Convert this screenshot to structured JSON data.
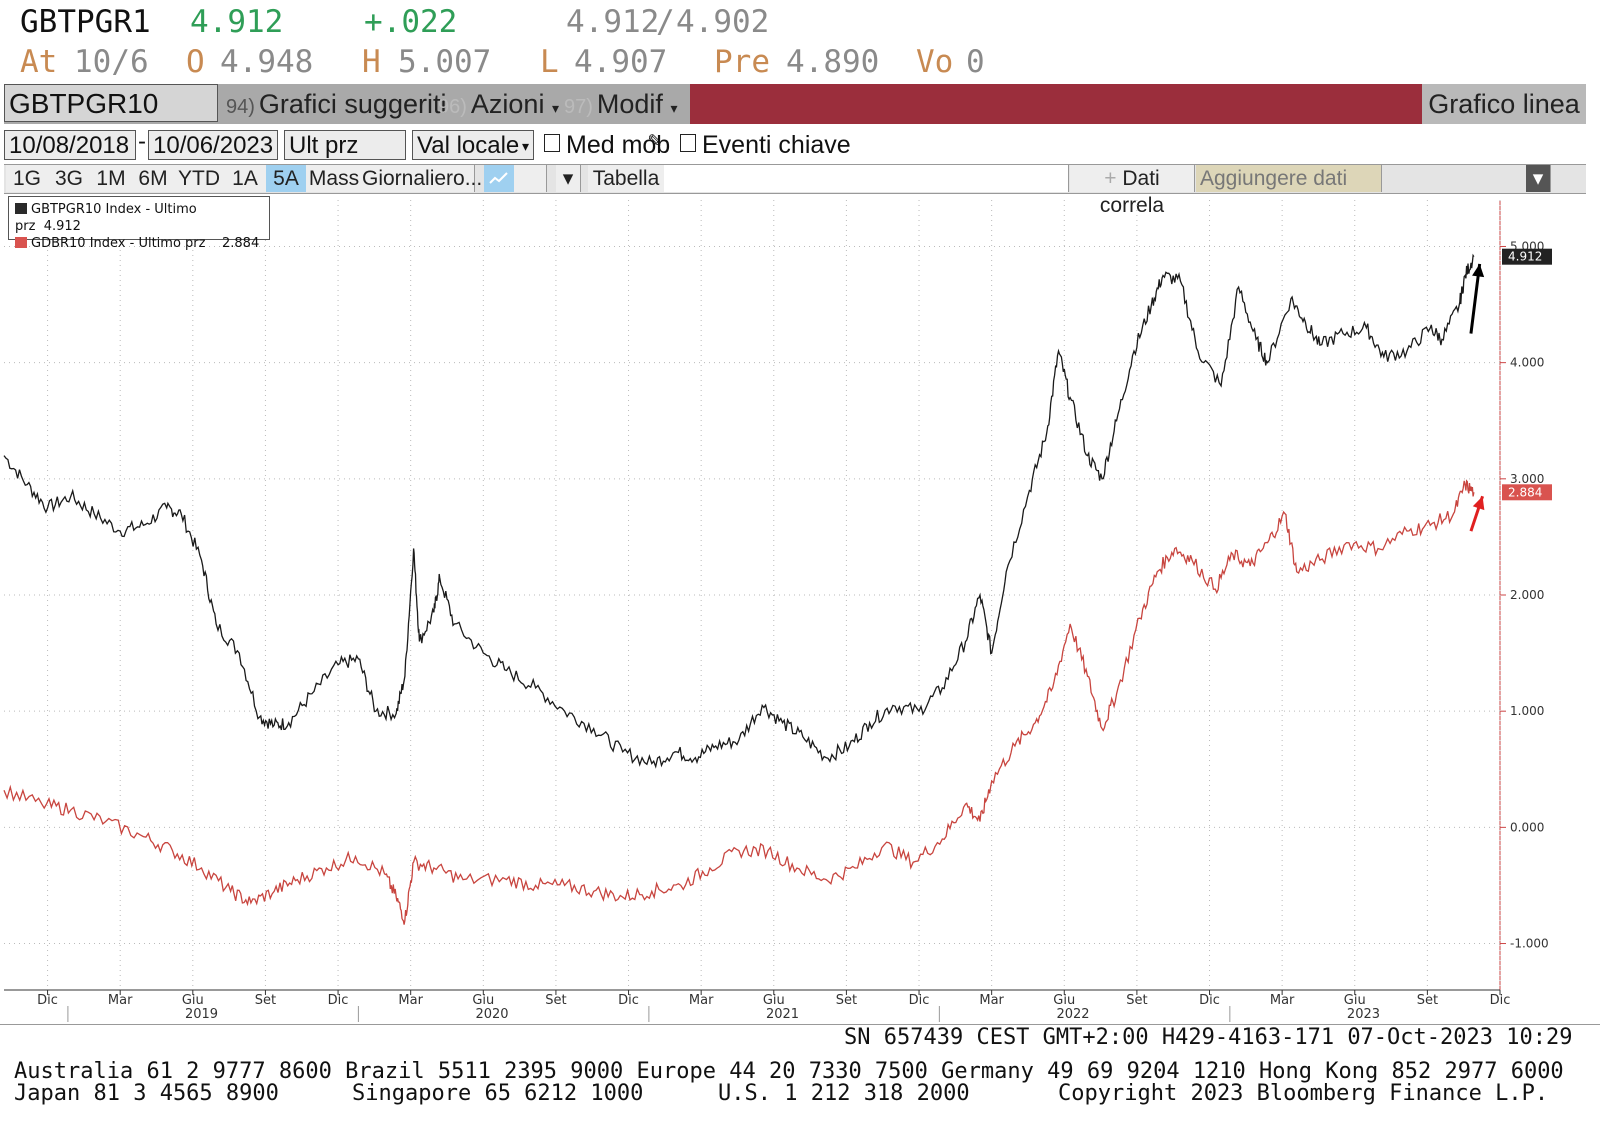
{
  "quote": {
    "ticker": "GBTPGR1",
    "last": "4.912",
    "change": "+.022",
    "bid": "4.912",
    "ask": "4.902",
    "at_label": "At",
    "at_value": "10/6",
    "open_label": "O",
    "open_value": "4.948",
    "high_label": "H",
    "high_value": "5.007",
    "low_label": "L",
    "low_value": "4.907",
    "prev_label": "Pre",
    "prev_value": "4.890",
    "vol_label": "Vo",
    "vol_value": "0"
  },
  "toolbar": {
    "security": "GBTPGR10 Index",
    "menu1_num": "94)",
    "menu1": "Grafici suggeriti",
    "menu2_num": "96)",
    "menu2": "Azioni",
    "menu3_num": "97)",
    "menu3": "Modif",
    "chart_type": "Grafico linea"
  },
  "controls": {
    "start_date": "10/08/2018",
    "end_date": "10/06/2023",
    "field": "Ult prz",
    "currency": "Val locale",
    "moving_avg": "Med mob",
    "key_events": "Eventi chiave",
    "periods": [
      "1G",
      "3G",
      "1M",
      "6M",
      "YTD",
      "1A",
      "5A",
      "Mass"
    ],
    "active_period": "5A",
    "frequency": "Giornaliero...",
    "table": "Tabella",
    "correlation": "Dati correla",
    "add_data": "Aggiungere dati"
  },
  "legend": [
    {
      "name": "GBTPGR10 Index - Ultimo prz",
      "value": "4.912",
      "color": "#2a2a2a"
    },
    {
      "name": "GDBR10 Index - Ultimo prz",
      "value": "2.884",
      "color": "#d9534f"
    }
  ],
  "chart_data": {
    "type": "line",
    "x_labels": [
      "Dic",
      "Mar",
      "Giu",
      "Set",
      "Dic",
      "Mar",
      "Giu",
      "Set",
      "Dic",
      "Mar",
      "Giu",
      "Set",
      "Dic",
      "Mar",
      "Giu",
      "Set",
      "Dic",
      "Mar",
      "Giu",
      "Set",
      "Dic"
    ],
    "years": [
      "2019",
      "2020",
      "2021",
      "2022",
      "2023"
    ],
    "y_ticks": [
      "-1.000",
      "0.000",
      "1.000",
      "2.000",
      "3.000",
      "4.000",
      "5.000"
    ],
    "ylim": [
      -1.4,
      5.4
    ],
    "xlim": [
      2018.77,
      2023.92
    ],
    "current_labels": [
      {
        "text": "4.912",
        "value": 4.912,
        "color": "#222222"
      },
      {
        "text": "2.884",
        "value": 2.884,
        "color": "#d9534f"
      }
    ],
    "series": [
      {
        "name": "GBTPGR10 Index - Ultimo prz",
        "color": "#1a1a1a",
        "points": [
          [
            2018.77,
            3.2
          ],
          [
            2018.85,
            2.95
          ],
          [
            2018.92,
            2.75
          ],
          [
            2019.0,
            2.85
          ],
          [
            2019.08,
            2.7
          ],
          [
            2019.17,
            2.55
          ],
          [
            2019.25,
            2.6
          ],
          [
            2019.33,
            2.75
          ],
          [
            2019.38,
            2.7
          ],
          [
            2019.45,
            2.3
          ],
          [
            2019.5,
            1.75
          ],
          [
            2019.58,
            1.5
          ],
          [
            2019.65,
            0.95
          ],
          [
            2019.7,
            0.88
          ],
          [
            2019.75,
            0.9
          ],
          [
            2019.83,
            1.15
          ],
          [
            2019.92,
            1.4
          ],
          [
            2019.99,
            1.45
          ],
          [
            2020.05,
            1.0
          ],
          [
            2020.12,
            0.98
          ],
          [
            2020.15,
            1.3
          ],
          [
            2020.18,
            2.4
          ],
          [
            2020.2,
            1.6
          ],
          [
            2020.25,
            1.85
          ],
          [
            2020.27,
            2.15
          ],
          [
            2020.32,
            1.75
          ],
          [
            2020.42,
            1.5
          ],
          [
            2020.5,
            1.35
          ],
          [
            2020.6,
            1.2
          ],
          [
            2020.7,
            1.0
          ],
          [
            2020.8,
            0.85
          ],
          [
            2020.9,
            0.65
          ],
          [
            2021.0,
            0.55
          ],
          [
            2021.08,
            0.65
          ],
          [
            2021.15,
            0.6
          ],
          [
            2021.22,
            0.7
          ],
          [
            2021.3,
            0.75
          ],
          [
            2021.38,
            1.05
          ],
          [
            2021.45,
            0.9
          ],
          [
            2021.52,
            0.78
          ],
          [
            2021.6,
            0.6
          ],
          [
            2021.68,
            0.7
          ],
          [
            2021.75,
            0.9
          ],
          [
            2021.83,
            1.05
          ],
          [
            2021.92,
            1.0
          ],
          [
            2022.0,
            1.2
          ],
          [
            2022.08,
            1.6
          ],
          [
            2022.13,
            2.0
          ],
          [
            2022.17,
            1.5
          ],
          [
            2022.22,
            2.2
          ],
          [
            2022.3,
            2.9
          ],
          [
            2022.36,
            3.4
          ],
          [
            2022.4,
            4.1
          ],
          [
            2022.44,
            3.7
          ],
          [
            2022.5,
            3.2
          ],
          [
            2022.55,
            3.0
          ],
          [
            2022.6,
            3.5
          ],
          [
            2022.66,
            4.1
          ],
          [
            2022.72,
            4.5
          ],
          [
            2022.76,
            4.75
          ],
          [
            2022.82,
            4.7
          ],
          [
            2022.88,
            4.1
          ],
          [
            2022.96,
            3.8
          ],
          [
            2023.02,
            4.65
          ],
          [
            2023.08,
            4.2
          ],
          [
            2023.12,
            4.0
          ],
          [
            2023.2,
            4.55
          ],
          [
            2023.25,
            4.35
          ],
          [
            2023.3,
            4.15
          ],
          [
            2023.38,
            4.25
          ],
          [
            2023.46,
            4.3
          ],
          [
            2023.52,
            4.05
          ],
          [
            2023.6,
            4.1
          ],
          [
            2023.68,
            4.3
          ],
          [
            2023.72,
            4.2
          ],
          [
            2023.78,
            4.5
          ],
          [
            2023.8,
            4.75
          ],
          [
            2023.83,
            4.912
          ]
        ]
      },
      {
        "name": "GDBR10 Index - Ultimo prz",
        "color": "#c8453f",
        "points": [
          [
            2018.77,
            0.32
          ],
          [
            2018.9,
            0.2
          ],
          [
            2019.0,
            0.15
          ],
          [
            2019.12,
            0.05
          ],
          [
            2019.25,
            -0.08
          ],
          [
            2019.35,
            -0.2
          ],
          [
            2019.45,
            -0.35
          ],
          [
            2019.55,
            -0.55
          ],
          [
            2019.62,
            -0.65
          ],
          [
            2019.7,
            -0.55
          ],
          [
            2019.78,
            -0.45
          ],
          [
            2019.88,
            -0.35
          ],
          [
            2019.98,
            -0.25
          ],
          [
            2020.08,
            -0.4
          ],
          [
            2020.12,
            -0.6
          ],
          [
            2020.15,
            -0.8
          ],
          [
            2020.18,
            -0.3
          ],
          [
            2020.25,
            -0.35
          ],
          [
            2020.35,
            -0.45
          ],
          [
            2020.5,
            -0.45
          ],
          [
            2020.6,
            -0.5
          ],
          [
            2020.7,
            -0.5
          ],
          [
            2020.8,
            -0.55
          ],
          [
            2020.9,
            -0.6
          ],
          [
            2021.0,
            -0.55
          ],
          [
            2021.1,
            -0.5
          ],
          [
            2021.2,
            -0.35
          ],
          [
            2021.3,
            -0.2
          ],
          [
            2021.4,
            -0.2
          ],
          [
            2021.5,
            -0.35
          ],
          [
            2021.6,
            -0.45
          ],
          [
            2021.7,
            -0.35
          ],
          [
            2021.8,
            -0.15
          ],
          [
            2021.9,
            -0.3
          ],
          [
            2022.0,
            -0.1
          ],
          [
            2022.08,
            0.2
          ],
          [
            2022.13,
            0.05
          ],
          [
            2022.17,
            0.4
          ],
          [
            2022.25,
            0.7
          ],
          [
            2022.32,
            0.9
          ],
          [
            2022.38,
            1.2
          ],
          [
            2022.44,
            1.75
          ],
          [
            2022.5,
            1.3
          ],
          [
            2022.55,
            0.85
          ],
          [
            2022.6,
            1.15
          ],
          [
            2022.68,
            1.8
          ],
          [
            2022.74,
            2.2
          ],
          [
            2022.8,
            2.4
          ],
          [
            2022.86,
            2.3
          ],
          [
            2022.94,
            2.05
          ],
          [
            2023.0,
            2.35
          ],
          [
            2023.06,
            2.25
          ],
          [
            2023.12,
            2.45
          ],
          [
            2023.18,
            2.7
          ],
          [
            2023.22,
            2.2
          ],
          [
            2023.3,
            2.3
          ],
          [
            2023.4,
            2.45
          ],
          [
            2023.5,
            2.4
          ],
          [
            2023.6,
            2.55
          ],
          [
            2023.68,
            2.6
          ],
          [
            2023.76,
            2.7
          ],
          [
            2023.8,
            2.95
          ],
          [
            2023.83,
            2.884
          ]
        ]
      }
    ]
  },
  "footer": {
    "status": "SN 657439 CEST GMT+2:00 H429-4163-171 07-Oct-2023 10:29",
    "contacts_line1": "Australia 61 2 9777 8600 Brazil 5511 2395 9000 Europe 44 20 7330 7500 Germany 49 69 9204 1210 Hong Kong 852 2977 6000",
    "contacts_line2_a": "Japan 81 3 4565 8900",
    "contacts_line2_b": "Singapore 65 6212 1000",
    "contacts_line2_c": "U.S. 1 212 318 2000",
    "copyright": "Copyright 2023 Bloomberg Finance L.P."
  }
}
